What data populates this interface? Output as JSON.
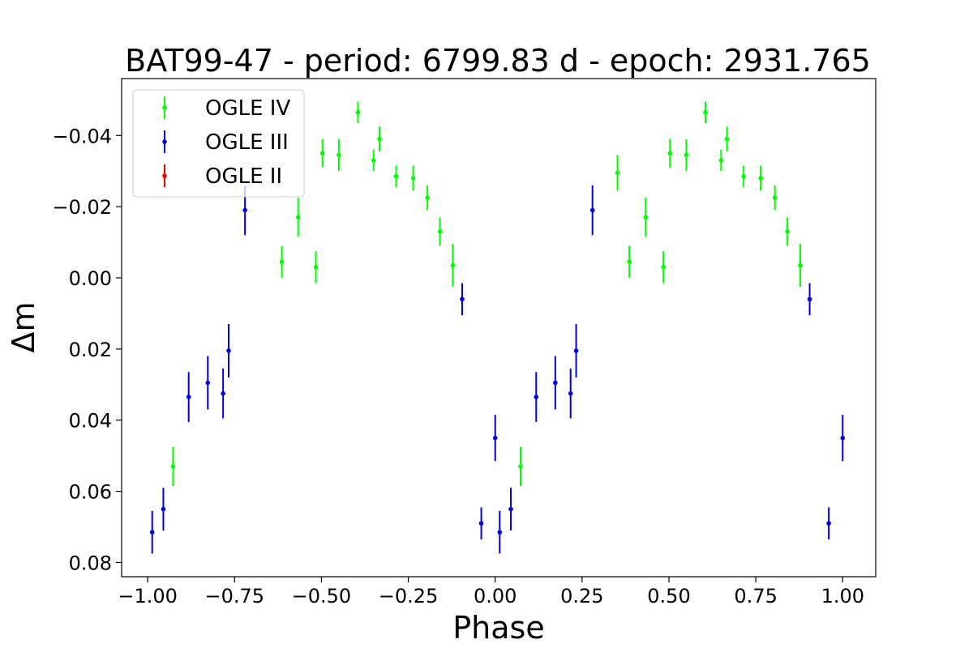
{
  "chart_data": {
    "type": "scatter",
    "title": "BAT99-47 - period: 6799.83 d - epoch: 2931.765",
    "xlabel": "Phase",
    "ylabel": "Δm",
    "xlim": [
      -1.075,
      1.095
    ],
    "ylim": [
      0.084,
      -0.056
    ],
    "y_inverted": true,
    "x_ticks": [
      -1.0,
      -0.75,
      -0.5,
      -0.25,
      0.0,
      0.25,
      0.5,
      0.75,
      1.0
    ],
    "x_tick_labels": [
      "−1.00",
      "−0.75",
      "−0.50",
      "−0.25",
      "0.00",
      "0.25",
      "0.50",
      "0.75",
      "1.00"
    ],
    "y_ticks": [
      -0.04,
      -0.02,
      0.0,
      0.02,
      0.04,
      0.06,
      0.08
    ],
    "y_tick_labels": [
      "−0.04",
      "−0.02",
      "0.00",
      "0.02",
      "0.04",
      "0.06",
      "0.08"
    ],
    "grid": false,
    "legend_position": "top-left",
    "series": [
      {
        "name": "OGLE IV",
        "color": "#00ff00",
        "points": [
          {
            "x": -0.927,
            "y": 0.053,
            "err": 0.0055
          },
          {
            "x": -0.614,
            "y": -0.0045,
            "err": 0.0045
          },
          {
            "x": -0.567,
            "y": -0.017,
            "err": 0.0055
          },
          {
            "x": -0.516,
            "y": -0.003,
            "err": 0.0045
          },
          {
            "x": -0.497,
            "y": -0.035,
            "err": 0.004
          },
          {
            "x": -0.45,
            "y": -0.0345,
            "err": 0.0045
          },
          {
            "x": -0.395,
            "y": -0.0465,
            "err": 0.003
          },
          {
            "x": -0.35,
            "y": -0.033,
            "err": 0.003
          },
          {
            "x": -0.333,
            "y": -0.039,
            "err": 0.0035
          },
          {
            "x": -0.285,
            "y": -0.0285,
            "err": 0.003
          },
          {
            "x": -0.236,
            "y": -0.028,
            "err": 0.0035
          },
          {
            "x": -0.195,
            "y": -0.0225,
            "err": 0.0035
          },
          {
            "x": -0.159,
            "y": -0.013,
            "err": 0.004
          },
          {
            "x": -0.122,
            "y": -0.0035,
            "err": 0.006
          },
          {
            "x": 0.073,
            "y": 0.053,
            "err": 0.0055
          },
          {
            "x": 0.386,
            "y": -0.0045,
            "err": 0.0045
          },
          {
            "x": 0.352,
            "y": -0.0295,
            "err": 0.005
          },
          {
            "x": 0.433,
            "y": -0.017,
            "err": 0.0055
          },
          {
            "x": 0.484,
            "y": -0.003,
            "err": 0.0045
          },
          {
            "x": 0.503,
            "y": -0.035,
            "err": 0.004
          },
          {
            "x": 0.55,
            "y": -0.0345,
            "err": 0.0045
          },
          {
            "x": 0.605,
            "y": -0.0465,
            "err": 0.003
          },
          {
            "x": 0.65,
            "y": -0.033,
            "err": 0.003
          },
          {
            "x": 0.667,
            "y": -0.039,
            "err": 0.0035
          },
          {
            "x": 0.715,
            "y": -0.0285,
            "err": 0.003
          },
          {
            "x": 0.764,
            "y": -0.028,
            "err": 0.0035
          },
          {
            "x": 0.805,
            "y": -0.0225,
            "err": 0.0035
          },
          {
            "x": 0.841,
            "y": -0.013,
            "err": 0.004
          },
          {
            "x": 0.878,
            "y": -0.0035,
            "err": 0.006
          }
        ]
      },
      {
        "name": "OGLE III",
        "color": "#0000dd",
        "points": [
          {
            "x": -0.987,
            "y": 0.0715,
            "err": 0.006
          },
          {
            "x": -0.955,
            "y": 0.065,
            "err": 0.006
          },
          {
            "x": -0.882,
            "y": 0.0335,
            "err": 0.007
          },
          {
            "x": -0.827,
            "y": 0.0295,
            "err": 0.0075
          },
          {
            "x": -0.783,
            "y": 0.0325,
            "err": 0.007
          },
          {
            "x": -0.767,
            "y": 0.0205,
            "err": 0.0075
          },
          {
            "x": -0.72,
            "y": -0.019,
            "err": 0.007
          },
          {
            "x": -0.095,
            "y": 0.006,
            "err": 0.0045
          },
          {
            "x": -0.04,
            "y": 0.069,
            "err": 0.0045
          },
          {
            "x": 0.0,
            "y": 0.045,
            "err": 0.0065
          },
          {
            "x": 0.013,
            "y": 0.0715,
            "err": 0.006
          },
          {
            "x": 0.045,
            "y": 0.065,
            "err": 0.006
          },
          {
            "x": 0.118,
            "y": 0.0335,
            "err": 0.007
          },
          {
            "x": 0.173,
            "y": 0.0295,
            "err": 0.0075
          },
          {
            "x": 0.217,
            "y": 0.0325,
            "err": 0.007
          },
          {
            "x": 0.233,
            "y": 0.0205,
            "err": 0.0075
          },
          {
            "x": 0.28,
            "y": -0.019,
            "err": 0.007
          },
          {
            "x": 0.905,
            "y": 0.006,
            "err": 0.0045
          },
          {
            "x": 0.96,
            "y": 0.069,
            "err": 0.0045
          },
          {
            "x": 1.0,
            "y": 0.045,
            "err": 0.0065
          }
        ]
      },
      {
        "name": "OGLE II",
        "color": "#ee0000",
        "points": []
      }
    ]
  }
}
